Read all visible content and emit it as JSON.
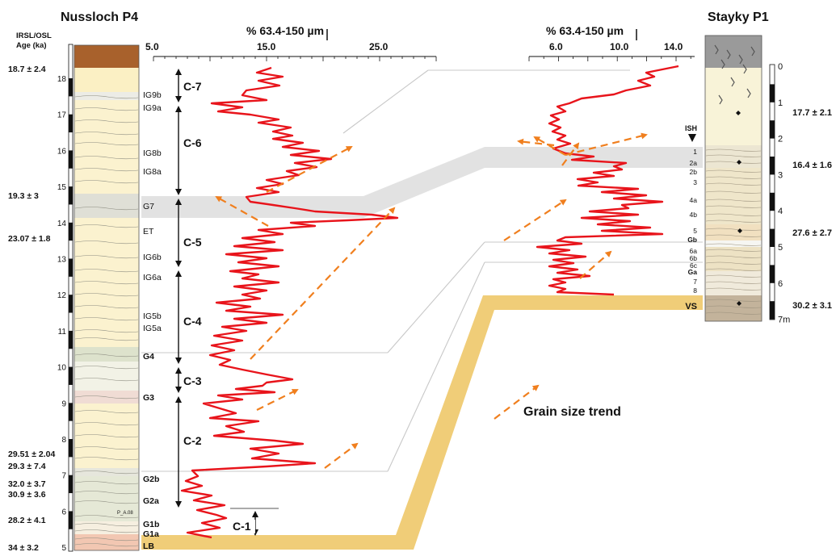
{
  "nussloch": {
    "title": "Nussloch P4",
    "age_header": [
      "IRSL/OSL",
      "Age (ka)"
    ],
    "depth_ticks": [
      "18",
      "17",
      "16",
      "15",
      "14",
      "13",
      "12",
      "11",
      "10",
      "9",
      "8",
      "7",
      "6",
      "5"
    ],
    "ages": [
      "18.7 ± 2.4",
      "19.3 ± 3",
      "23.07 ± 1.8",
      "29.51 ± 2.04",
      "29.3 ± 7.4",
      "32.0 ± 3.7",
      "30.9 ± 3.6",
      "28.2 ± 4.1",
      "34 ± 3.2"
    ],
    "horizons": [
      "IG9b",
      "IG9a",
      "IG8b",
      "IG8a",
      "G7",
      "ET",
      "IG6b",
      "IG6a",
      "IG5b",
      "IG5a",
      "G4",
      "G3",
      "G2b",
      "G2a",
      "G1b",
      "G1a",
      "LB"
    ],
    "sample_label": "P_A.08",
    "axis_label": "% 63.4-150 µm",
    "axis_ticks": [
      "5.0",
      "15.0",
      "25.0"
    ]
  },
  "cycles": [
    "C-7",
    "C-6",
    "C-5",
    "C-4",
    "C-3",
    "C-2",
    "C-1"
  ],
  "stayky": {
    "title": "Stayky P1",
    "axis_label": "% 63.4-150 µm",
    "axis_ticks": [
      "6.0",
      "10.0",
      "14.0"
    ],
    "depth_ticks": [
      "0",
      "1",
      "2",
      "3",
      "4",
      "5",
      "6",
      "7m"
    ],
    "ages": [
      "17.7 ± 2.1",
      "16.4 ± 1.6",
      "27.6 ± 2.7",
      "30.2 ± 3.1"
    ],
    "ish_label": "ISH",
    "horizons": [
      "1",
      "2a",
      "2b",
      "3",
      "4a",
      "4b",
      "5",
      "Gb",
      "6a",
      "6b",
      "6c",
      "Ga",
      "7",
      "8",
      "VS"
    ]
  },
  "legend": {
    "label": "Grain size trend"
  },
  "colors": {
    "curve": "#e8141b",
    "trend": "#f07f1e",
    "band": "#e2e2e2",
    "correlation": "#f0cd78",
    "ages": "#111111"
  }
}
